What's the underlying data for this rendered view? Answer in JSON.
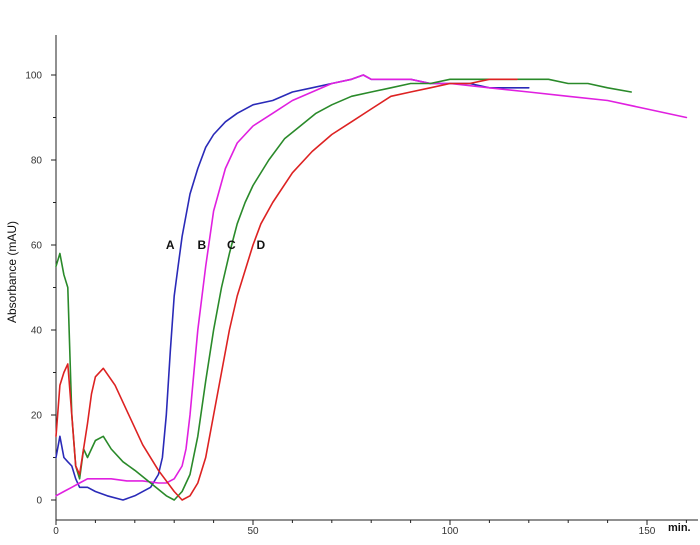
{
  "chart_data": {
    "type": "line",
    "title": "",
    "xlabel": "min.",
    "ylabel": "Absorbance (mAU)",
    "xlim": [
      0,
      162
    ],
    "ylim": [
      -5,
      105
    ],
    "x_ticks": [
      0,
      50,
      100,
      150
    ],
    "x_tick_labels": [
      "0",
      "50",
      "100",
      "150"
    ],
    "y_ticks": [
      0,
      20,
      40,
      60,
      80,
      100
    ],
    "y_tick_labels": [
      "0",
      "20",
      "40",
      "60",
      "80",
      "100"
    ],
    "grid": false,
    "legend": "none",
    "series": [
      {
        "name": "A",
        "color": "#2a2ab8",
        "x": [
          0,
          1,
          2,
          3,
          4,
          5,
          6,
          8,
          10,
          13,
          17,
          20,
          24,
          26,
          27,
          28,
          29,
          30,
          31,
          32,
          34,
          36,
          38,
          40,
          43,
          46,
          50,
          55,
          60,
          65,
          70,
          75,
          78,
          80,
          85,
          90,
          95,
          100,
          105,
          110,
          115,
          120
        ],
        "y": [
          10,
          15,
          10,
          9,
          8,
          5,
          3,
          3,
          2,
          1,
          0,
          1,
          3,
          6,
          10,
          20,
          35,
          48,
          55,
          62,
          72,
          78,
          83,
          86,
          89,
          91,
          93,
          94,
          96,
          97,
          98,
          99,
          100,
          99,
          99,
          99,
          98,
          98,
          98,
          97,
          97,
          97
        ]
      },
      {
        "name": "B",
        "color": "#e020e0",
        "x": [
          0,
          2,
          4,
          6,
          8,
          10,
          14,
          18,
          22,
          26,
          28,
          30,
          32,
          33,
          34,
          35,
          36,
          38,
          40,
          43,
          46,
          50,
          55,
          60,
          65,
          70,
          75,
          78,
          80,
          85,
          90,
          95,
          100,
          110,
          120,
          130,
          140,
          150,
          160
        ],
        "y": [
          1,
          2,
          3,
          4,
          5,
          5,
          5,
          4.5,
          4.5,
          4,
          4,
          5,
          8,
          12,
          20,
          30,
          40,
          55,
          68,
          78,
          84,
          88,
          91,
          94,
          96,
          98,
          99,
          100,
          99,
          99,
          99,
          98,
          98,
          97,
          96,
          95,
          94,
          92,
          90
        ]
      },
      {
        "name": "C",
        "color": "#2a8a2a",
        "x": [
          0,
          1,
          2,
          3,
          4,
          5,
          6,
          7,
          8,
          10,
          12,
          14,
          17,
          20,
          24,
          28,
          30,
          32,
          34,
          36,
          38,
          40,
          42,
          44,
          46,
          48,
          50,
          54,
          58,
          62,
          66,
          70,
          75,
          80,
          85,
          90,
          95,
          100,
          105,
          110,
          115,
          120,
          125,
          130,
          135,
          140,
          146
        ],
        "y": [
          55,
          58,
          53,
          50,
          20,
          8,
          5,
          12,
          10,
          14,
          15,
          12,
          9,
          7,
          4,
          1,
          0,
          2,
          6,
          15,
          28,
          40,
          50,
          58,
          65,
          70,
          74,
          80,
          85,
          88,
          91,
          93,
          95,
          96,
          97,
          98,
          98,
          99,
          99,
          99,
          99,
          99,
          99,
          98,
          98,
          97,
          96
        ]
      },
      {
        "name": "D",
        "color": "#dd2222",
        "x": [
          0,
          1,
          2,
          3,
          4,
          5,
          6,
          8,
          9,
          10,
          12,
          15,
          18,
          22,
          26,
          30,
          32,
          34,
          36,
          38,
          40,
          42,
          44,
          46,
          48,
          50,
          52,
          55,
          60,
          65,
          70,
          75,
          80,
          85,
          90,
          95,
          100,
          105,
          110,
          115,
          117
        ],
        "y": [
          15,
          27,
          30,
          32,
          20,
          8,
          6,
          18,
          25,
          29,
          31,
          27,
          21,
          13,
          7,
          2,
          0,
          1,
          4,
          10,
          20,
          30,
          40,
          48,
          54,
          60,
          65,
          70,
          77,
          82,
          86,
          89,
          92,
          95,
          96,
          97,
          98,
          98,
          99,
          99,
          99
        ]
      }
    ],
    "curve_labels": [
      {
        "text": "A",
        "x": 29,
        "y": 60
      },
      {
        "text": "B",
        "x": 37,
        "y": 60
      },
      {
        "text": "C",
        "x": 44.5,
        "y": 60
      },
      {
        "text": "D",
        "x": 52,
        "y": 60
      }
    ],
    "axis_color": "#222222"
  }
}
